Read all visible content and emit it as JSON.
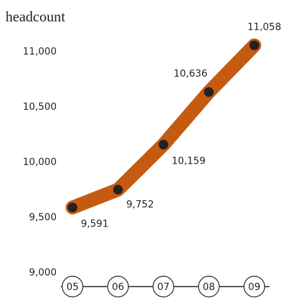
{
  "chart_data": {
    "type": "line",
    "title": "headcount",
    "categories": [
      "05",
      "06",
      "07",
      "08",
      "09"
    ],
    "values": [
      9591,
      9752,
      10159,
      10636,
      11058
    ],
    "value_labels": [
      "9,591",
      "9,752",
      "10,159",
      "10,636",
      "11,058"
    ],
    "color": "#c55a11",
    "marker_color": "#222222",
    "ylim": [
      9000,
      11000
    ],
    "yticks": [
      {
        "value": 9000,
        "label": "9,000"
      },
      {
        "value": 9500,
        "label": "9,500"
      },
      {
        "value": 10000,
        "label": "10,000"
      },
      {
        "value": 10500,
        "label": "10,500"
      },
      {
        "value": 11000,
        "label": "11,000"
      }
    ]
  }
}
